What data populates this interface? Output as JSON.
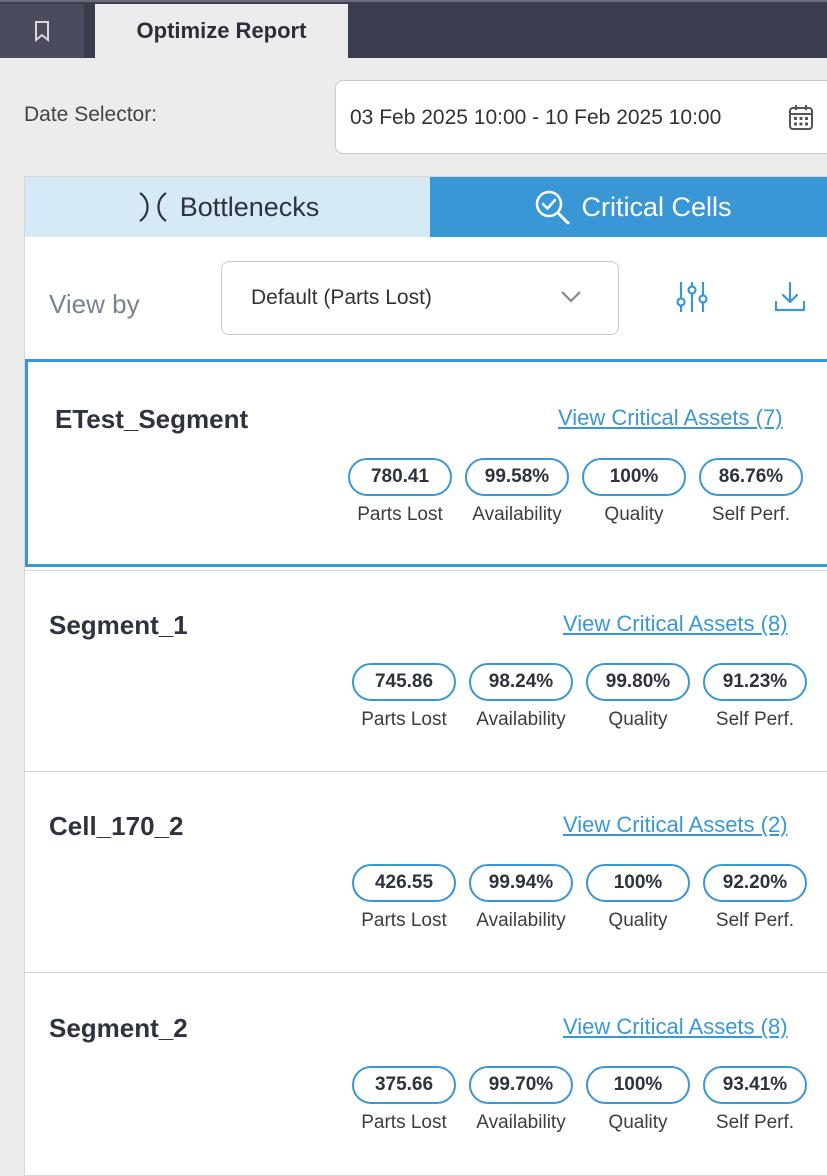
{
  "header": {
    "bookmark_icon": "bookmark-icon",
    "tab_title": "Optimize Report"
  },
  "date_selector": {
    "label": "Date Selector:",
    "value": "03 Feb 2025 10:00 - 10 Feb 2025 10:00",
    "icon": "calendar-icon"
  },
  "tabs": {
    "bottlenecks": "Bottlenecks",
    "critical_cells": "Critical Cells",
    "active": "critical_cells"
  },
  "view_by": {
    "label": "View by",
    "selected": "Default (Parts Lost)",
    "filter_icon": "sliders-icon",
    "download_icon": "download-icon"
  },
  "colors": {
    "accent": "#3a97d6",
    "tab_inactive": "#d5e9f7",
    "topbar": "#3b3d4f"
  },
  "metric_labels": {
    "parts_lost": "Parts Lost",
    "availability": "Availability",
    "quality": "Quality",
    "self_perf": "Self Perf."
  },
  "cards": [
    {
      "name": "ETest_Segment",
      "link": "View Critical Assets (7)",
      "selected": true,
      "parts_lost": "780.41",
      "availability": "99.58%",
      "quality": "100%",
      "self_perf": "86.76%"
    },
    {
      "name": "Segment_1",
      "link": "View Critical Assets (8)",
      "selected": false,
      "parts_lost": "745.86",
      "availability": "98.24%",
      "quality": "99.80%",
      "self_perf": "91.23%"
    },
    {
      "name": "Cell_170_2",
      "link": "View Critical Assets (2)",
      "selected": false,
      "parts_lost": "426.55",
      "availability": "99.94%",
      "quality": "100%",
      "self_perf": "92.20%"
    },
    {
      "name": "Segment_2",
      "link": "View Critical Assets (8)",
      "selected": false,
      "parts_lost": "375.66",
      "availability": "99.70%",
      "quality": "100%",
      "self_perf": "93.41%"
    }
  ]
}
